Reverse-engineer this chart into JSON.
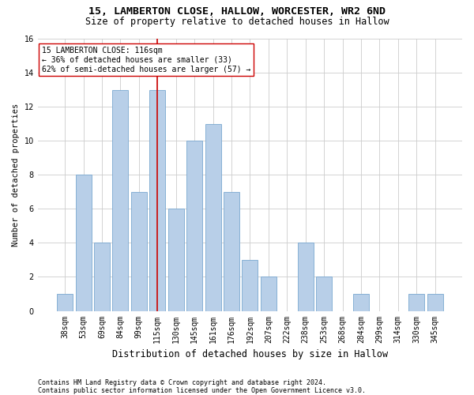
{
  "title": "15, LAMBERTON CLOSE, HALLOW, WORCESTER, WR2 6ND",
  "subtitle": "Size of property relative to detached houses in Hallow",
  "xlabel": "Distribution of detached houses by size in Hallow",
  "ylabel": "Number of detached properties",
  "footer1": "Contains HM Land Registry data © Crown copyright and database right 2024.",
  "footer2": "Contains public sector information licensed under the Open Government Licence v3.0.",
  "categories": [
    "38sqm",
    "53sqm",
    "69sqm",
    "84sqm",
    "99sqm",
    "115sqm",
    "130sqm",
    "145sqm",
    "161sqm",
    "176sqm",
    "192sqm",
    "207sqm",
    "222sqm",
    "238sqm",
    "253sqm",
    "268sqm",
    "284sqm",
    "299sqm",
    "314sqm",
    "330sqm",
    "345sqm"
  ],
  "values": [
    1,
    8,
    4,
    13,
    7,
    13,
    6,
    10,
    11,
    7,
    3,
    2,
    0,
    4,
    2,
    0,
    1,
    0,
    0,
    1,
    1
  ],
  "bar_color": "#b8cfe8",
  "bar_edge_color": "#7aa8d0",
  "highlight_index": 5,
  "highlight_line_color": "#cc0000",
  "annotation_line1": "15 LAMBERTON CLOSE: 116sqm",
  "annotation_line2": "← 36% of detached houses are smaller (33)",
  "annotation_line3": "62% of semi-detached houses are larger (57) →",
  "annotation_box_color": "#ffffff",
  "annotation_box_edge": "#cc0000",
  "ylim": [
    0,
    16
  ],
  "yticks": [
    0,
    2,
    4,
    6,
    8,
    10,
    12,
    14,
    16
  ],
  "grid_color": "#cccccc",
  "background_color": "#ffffff",
  "title_fontsize": 9.5,
  "subtitle_fontsize": 8.5,
  "xlabel_fontsize": 8.5,
  "ylabel_fontsize": 7.5,
  "tick_fontsize": 7,
  "annotation_fontsize": 7,
  "footer_fontsize": 6
}
